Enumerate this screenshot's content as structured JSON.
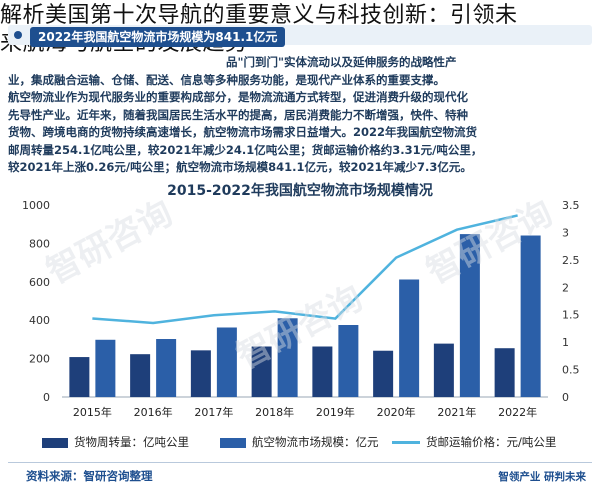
{
  "overlay_title": {
    "line1": "解析美国第十次导航的重要意义与科技创新：引领未",
    "line2": "来航海与航空的发展趋势"
  },
  "subhead": "2022年我国航空物流市场规模为841.1亿元",
  "paragraph": [
    "品\"门到门\"实体流动以及延伸服务的战略性产",
    "业，集成融合运输、仓储、配送、信息等多种服务功能，是现代产业体系的重要支撑。",
    "航空物流业作为现代服务业的重要构成部分，是物流流通方式转型，促进消费升级的现代化",
    "先导性产业。近年来，随着我国居民生活水平的提高，居民消费能力不断增强，快件、特种",
    "货物、跨境电商的货物持续高速增长，航空物流市场需求日益增大。2022年我国航空物流货",
    "邮周转量254.1亿吨公里，较2021年减少24.1亿吨公里；货邮运输价格约3.31元/吨公里，",
    "较2021年上涨0.26元/吨公里；航空物流市场规模841.1亿元，较2021年减少7.3亿元。"
  ],
  "chart_data": {
    "type": "bar",
    "title": "2015-2022年我国航空物流市场规模情况",
    "categories": [
      "2015年",
      "2016年",
      "2017年",
      "2018年",
      "2019年",
      "2020年",
      "2021年",
      "2022年"
    ],
    "series": [
      {
        "name": "货物周转量：亿吨公里",
        "type": "bar",
        "axis": "left",
        "color": "#1e3f7a",
        "values": [
          208,
          223,
          243,
          263,
          263,
          241,
          278,
          254.1
        ]
      },
      {
        "name": "航空物流市场规模：亿元",
        "type": "bar",
        "axis": "left",
        "color": "#2b5fa8",
        "values": [
          298,
          302,
          362,
          410,
          375,
          612,
          848.4,
          841.1
        ]
      },
      {
        "name": "货邮运输价格：元/吨公里",
        "type": "line",
        "axis": "right",
        "color": "#4fb3de",
        "values": [
          1.43,
          1.35,
          1.49,
          1.56,
          1.43,
          2.54,
          3.05,
          3.31
        ]
      }
    ],
    "ylim_left": [
      0,
      1000
    ],
    "yticks_left": [
      "0",
      "200",
      "400",
      "600",
      "800",
      "1000"
    ],
    "ylim_right": [
      0,
      3.5
    ],
    "yticks_right": [
      "0",
      "0.5",
      "1",
      "1.5",
      "2",
      "2.5",
      "3",
      "3.5"
    ],
    "grid": false,
    "legend_position": "bottom"
  },
  "footer": {
    "source": "资料来源：智研咨询整理",
    "brand": "智领产业  研判未来"
  },
  "watermark": "智研咨询"
}
